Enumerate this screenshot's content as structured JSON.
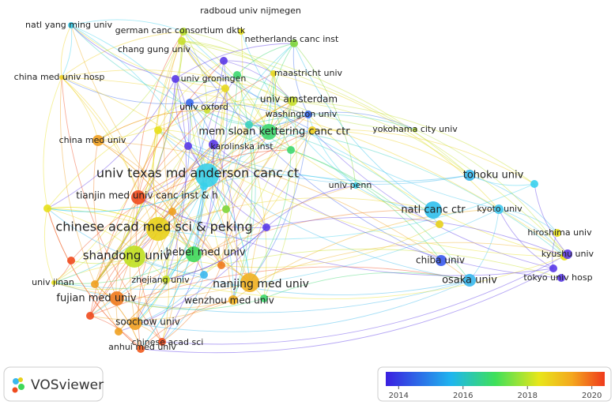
{
  "nodes": [
    {
      "label": "natl yang ming univ",
      "color": "#3ad0ee"
    },
    {
      "label": "german canc consortium dktk",
      "color": "#b8e02a"
    },
    {
      "label": "radboud univ nijmegen",
      "color": "#e8e01a"
    },
    {
      "label": "netherlands canc inst",
      "color": "#7fd63a"
    },
    {
      "label": "chang gung univ",
      "color": "#c8e030"
    },
    {
      "label": "china med univ hosp",
      "color": "#f0d020"
    },
    {
      "label": "univ groningen",
      "color": "#5a3ae8"
    },
    {
      "label": "maastricht univ",
      "color": "#e8d820"
    },
    {
      "label": "univ amsterdam",
      "color": "#c8e030"
    },
    {
      "label": "univ oxford",
      "color": "#d0e030"
    },
    {
      "label": "washington univ",
      "color": "#3a6aee"
    },
    {
      "label": "mem sloan kettering canc ctr",
      "color": "#3ed870"
    },
    {
      "label": "yokohama city univ",
      "color": "#b8e040"
    },
    {
      "label": "china med univ",
      "color": "#f0a020"
    },
    {
      "label": "karolinska inst",
      "color": "#5a3ae8"
    },
    {
      "label": "univ texas md anderson canc ct",
      "color": "#3ad0e8"
    },
    {
      "label": "tohoku univ",
      "color": "#3ab8ee"
    },
    {
      "label": "univ penn",
      "color": "#3ad0ee"
    },
    {
      "label": "tianjin med univ canc inst & h",
      "color": "#ef4a1d"
    },
    {
      "label": "natl canc ctr",
      "color": "#30c0ee"
    },
    {
      "label": "kyoto univ",
      "color": "#40c8ee"
    },
    {
      "label": "chinese acad med sci & peking",
      "color": "#e8d01a"
    },
    {
      "label": "hiroshima univ",
      "color": "#e8e01a"
    },
    {
      "label": "shandong univ",
      "color": "#c0e020"
    },
    {
      "label": "hebei med univ",
      "color": "#3ed85a"
    },
    {
      "label": "kyushu univ",
      "color": "#5a3ae8"
    },
    {
      "label": "chiba univ",
      "color": "#3a5aee"
    },
    {
      "label": "osaka univ",
      "color": "#3ab8ee"
    },
    {
      "label": "tokyo univ hosp",
      "color": "#5a3ae8"
    },
    {
      "label": "nanjing med univ",
      "color": "#f0b020"
    },
    {
      "label": "zhejiang univ",
      "color": "#c8e020"
    },
    {
      "label": "univ jinan",
      "color": "#e8e01a"
    },
    {
      "label": "fujian med univ",
      "color": "#f07a1e"
    },
    {
      "label": "wenzhou med univ",
      "color": "#f0b020"
    },
    {
      "label": "soochow univ",
      "color": "#f0a020"
    },
    {
      "label": "chinese acad sci",
      "color": "#ef4a1d"
    },
    {
      "label": "anhui med univ",
      "color": "#ef5a1d"
    }
  ],
  "legend": {
    "range": [
      2013.6,
      2020.4
    ],
    "ticks": [
      2014,
      2016,
      2018,
      2020
    ]
  },
  "brand": "VOSviewer"
}
